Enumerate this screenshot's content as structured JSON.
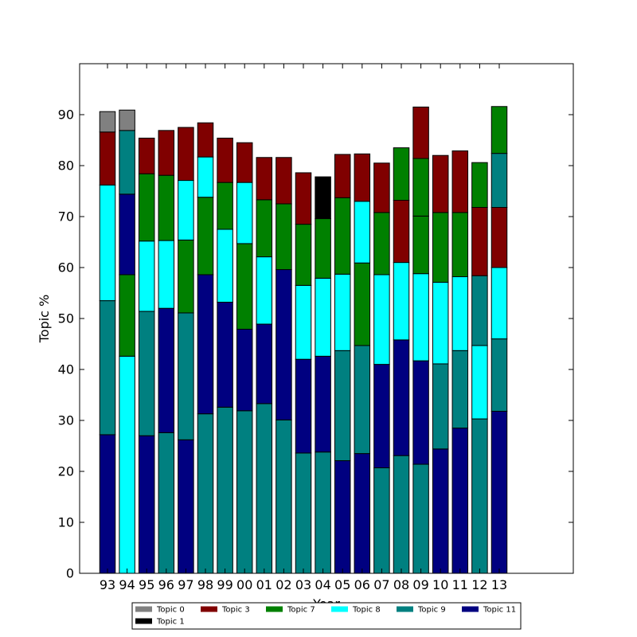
{
  "chart_data": {
    "type": "bar",
    "stacked": true,
    "xlabel": "Year",
    "ylabel": "Topic %",
    "ylim": [
      0,
      100
    ],
    "yticks": [
      0,
      10,
      20,
      30,
      40,
      50,
      60,
      70,
      80,
      90
    ],
    "grid": false,
    "legend_position": "bottom",
    "categories": [
      "93",
      "94",
      "95",
      "96",
      "97",
      "98",
      "99",
      "00",
      "01",
      "02",
      "03",
      "04",
      "05",
      "06",
      "07",
      "08",
      "09",
      "10",
      "11",
      "12",
      "13"
    ],
    "series": [
      {
        "name": "Topic 11",
        "color": "#000080",
        "values": [
          27.2,
          0,
          27.0,
          0,
          26.2,
          0,
          0,
          0,
          0,
          0,
          0,
          0,
          22.1,
          23.5,
          0,
          0,
          0,
          24.4,
          28.5,
          0,
          31.8
        ]
      },
      {
        "name": "Topic 9",
        "color": "#008080",
        "values": [
          26.3,
          0,
          24.4,
          27.6,
          24.9,
          31.3,
          32.6,
          31.9,
          33.3,
          30.1,
          23.6,
          23.8,
          21.6,
          21.2,
          20.7,
          23.1,
          21.4,
          16.7,
          15.2,
          30.3,
          14.2
        ]
      },
      {
        "name": "Topic 11",
        "color": "#000080",
        "values": [
          0,
          0,
          0,
          24.4,
          0,
          27.3,
          20.6,
          0,
          15.6,
          29.5,
          18.4,
          18.8,
          0,
          0,
          20.3,
          22.7,
          20.3,
          0,
          0,
          0,
          0
        ]
      },
      {
        "name": "Topic 8",
        "color": "#00ffff",
        "values": [
          22.7,
          42.6,
          13.8,
          13.3,
          0,
          0,
          14.3,
          0,
          13.2,
          0,
          14.5,
          15.3,
          15.0,
          0,
          17.6,
          15.2,
          17.1,
          16.0,
          14.5,
          14.4,
          0
        ]
      },
      {
        "name": "Topic 11",
        "color": "#000080",
        "values": [
          0,
          0,
          0,
          0,
          0,
          0,
          0,
          16.0,
          0,
          0,
          0,
          0,
          0,
          0,
          0,
          0,
          0,
          0,
          0,
          0,
          0
        ]
      },
      {
        "name": "Topic 9",
        "color": "#008080",
        "values": [
          0,
          0,
          0,
          0,
          0,
          0,
          0,
          0,
          0,
          0,
          0,
          0,
          0,
          0,
          0,
          0,
          0,
          0,
          0,
          13.7,
          0
        ]
      },
      {
        "name": "Topic 7",
        "color": "#008000",
        "values": [
          0,
          16.0,
          13.2,
          12.8,
          14.3,
          15.2,
          0,
          16.8,
          11.2,
          12.9,
          12.0,
          11.7,
          15.0,
          16.2,
          12.2,
          0,
          11.3,
          13.7,
          12.6,
          0,
          0
        ]
      },
      {
        "name": "Topic 8",
        "color": "#00ffff",
        "values": [
          0,
          0,
          0,
          0,
          11.7,
          0,
          0,
          12.0,
          0,
          0,
          0,
          0,
          0,
          12.1,
          0,
          0,
          0,
          0,
          0,
          0,
          14.0
        ]
      },
      {
        "name": "Topic 11",
        "color": "#000080",
        "values": [
          0,
          15.8,
          0,
          0,
          0,
          0,
          0,
          0,
          0,
          0,
          0,
          0,
          0,
          0,
          0,
          0,
          0,
          0,
          0,
          0,
          0
        ]
      },
      {
        "name": "Topic 3",
        "color": "#800000",
        "values": [
          0,
          0,
          0,
          0,
          0,
          0,
          0,
          0,
          0,
          0,
          0,
          0,
          0,
          0,
          0,
          0,
          0,
          0,
          0,
          13.4,
          11.8
        ]
      },
      {
        "name": "Topic 8",
        "color": "#00ffff",
        "values": [
          0,
          0,
          0,
          0,
          0,
          7.9,
          0,
          0,
          0,
          0,
          0,
          0,
          0,
          0,
          0,
          0,
          0,
          0,
          0,
          0,
          0
        ]
      },
      {
        "name": "Topic 7",
        "color": "#008000",
        "values": [
          0,
          0,
          0,
          0,
          0,
          0,
          9.2,
          0,
          0,
          0,
          0,
          0,
          0,
          0,
          0,
          0,
          11.3,
          0,
          0,
          0,
          0
        ]
      },
      {
        "name": "Topic 9",
        "color": "#008080",
        "values": [
          0,
          12.5,
          0,
          0,
          0,
          0,
          0,
          0,
          0,
          0,
          0,
          0,
          0,
          0,
          0,
          0,
          0,
          0,
          0,
          0,
          10.6
        ]
      },
      {
        "name": "Topic 3",
        "color": "#800000",
        "values": [
          10.4,
          0,
          7.0,
          8.8,
          10.4,
          6.7,
          8.7,
          7.8,
          8.3,
          9.1,
          10.1,
          0,
          8.5,
          9.3,
          9.7,
          12.2,
          10.1,
          11.2,
          12.1,
          0,
          0
        ]
      },
      {
        "name": "Topic 7",
        "color": "#008000",
        "values": [
          0,
          0,
          0,
          0,
          0,
          0,
          0,
          0,
          0,
          0,
          0,
          0,
          0,
          0,
          0,
          10.3,
          0,
          0,
          0,
          8.8,
          9.2
        ]
      },
      {
        "name": "Topic 0",
        "color": "#808080",
        "values": [
          4.0,
          4.0,
          0,
          0,
          0,
          0,
          0,
          0,
          0,
          0,
          0,
          0,
          0,
          0,
          0,
          0,
          0,
          0,
          0,
          0,
          0
        ]
      },
      {
        "name": "Topic 1",
        "color": "#000000",
        "values": [
          0,
          0,
          0,
          0,
          0,
          0,
          0,
          0,
          0,
          0,
          0,
          8.2,
          0,
          0,
          0,
          0,
          0,
          0,
          0,
          0,
          0
        ]
      }
    ],
    "legend": [
      {
        "label": "Topic 0",
        "color": "#808080"
      },
      {
        "label": "Topic 3",
        "color": "#800000"
      },
      {
        "label": "Topic 7",
        "color": "#008000"
      },
      {
        "label": "Topic 8",
        "color": "#00ffff"
      },
      {
        "label": "Topic 9",
        "color": "#008080"
      },
      {
        "label": "Topic 11",
        "color": "#000080"
      },
      {
        "label": "Topic 1",
        "color": "#000000"
      }
    ]
  }
}
